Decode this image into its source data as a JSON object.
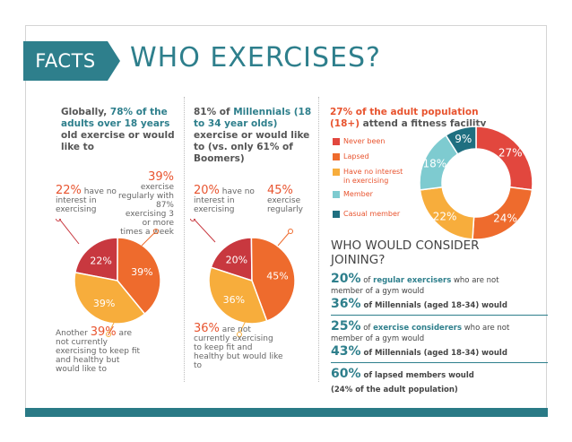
{
  "header": {
    "tag": "FACTS",
    "title": "WHO EXERCISES?"
  },
  "col1": {
    "headline_pre": "Globally, ",
    "headline_hl": "78% of the adults over 18 years",
    "headline_post": " old exercise or would like to",
    "left_big": "22%",
    "left_text": " have no interest in exercising",
    "right_big": "39%",
    "right_text": " exercise regularly with 87% exercising 3 or more times a week",
    "bottom_pre": "Another ",
    "bottom_big": "39%",
    "bottom_text": " are not currently exercising to keep fit and healthy but would like to",
    "pie": [
      {
        "label": "22%",
        "value": 22,
        "color": "#c8383f"
      },
      {
        "label": "39%",
        "value": 39,
        "color": "#ee6b2d"
      },
      {
        "label": "39%",
        "value": 39,
        "color": "#f7ad3c"
      }
    ]
  },
  "col2": {
    "headline_pre": "81% of ",
    "headline_hl": "Millennials (18 to 34 year olds)",
    "headline_post": " exercise or would like to (vs. only 61% of Boomers)",
    "left_big": "20%",
    "left_text": " have no interest in exercising",
    "right_big": "45%",
    "right_text": " exercise regularly",
    "bottom_big": "36%",
    "bottom_text": " are not currently exercising to keep fit and healthy but would like to",
    "pie": [
      {
        "label": "20%",
        "value": 20,
        "color": "#c8383f"
      },
      {
        "label": "45%",
        "value": 45,
        "color": "#ee6b2d"
      },
      {
        "label": "36%",
        "value": 36,
        "color": "#f7ad3c"
      }
    ]
  },
  "col3": {
    "headline_hl": "27% of the adult population (18+)",
    "headline_post": " attend a fitness facility",
    "legend": [
      {
        "label": "Never been",
        "color": "#e2473e"
      },
      {
        "label": "Lapsed",
        "color": "#ee6b2d"
      },
      {
        "label": "Have no interest in exercising",
        "color": "#f7ad3c"
      },
      {
        "label": "Member",
        "color": "#7ecbd0"
      },
      {
        "label": "Casual member",
        "color": "#1f6f80"
      }
    ],
    "donut": [
      {
        "label": "27%",
        "value": 27,
        "color": "#e2473e"
      },
      {
        "label": "24%",
        "value": 24,
        "color": "#ee6b2d"
      },
      {
        "label": "22%",
        "value": 22,
        "color": "#f7ad3c"
      },
      {
        "label": "18%",
        "value": 18,
        "color": "#7ecbd0"
      },
      {
        "label": "9%",
        "value": 9,
        "color": "#1f6f80"
      }
    ],
    "join_title": "WHO WOULD CONSIDER JOINING?",
    "stats": {
      "s1_pct": "20%",
      "s1_a": " of ",
      "s1_hl": "regular exercisers",
      "s1_b": " who are not",
      "s1_line2": "member of a gym would",
      "s2_pct": "36%",
      "s2_text": " of Millennials (aged 18-34) would",
      "s3_pct": "25%",
      "s3_a": " of ",
      "s3_hl": "exercise considerers",
      "s3_b": " who are not",
      "s3_line2": "member of a gym would",
      "s4_pct": "43%",
      "s4_text": " of Millennials (aged 18-34) would",
      "s5_pct": "60%",
      "s5_text": " of lapsed members would",
      "s5_line2": "(24% of the adult population)"
    }
  }
}
